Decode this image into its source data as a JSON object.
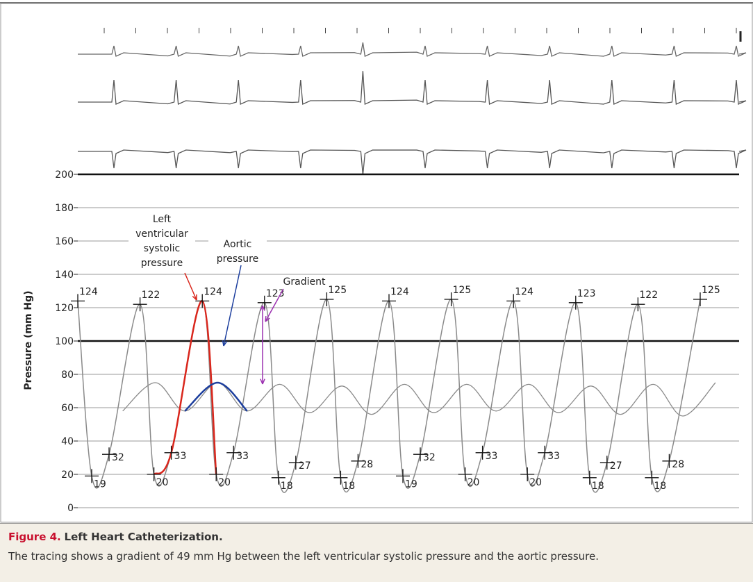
{
  "chart_data": {
    "type": "line",
    "ylabel": "Pressure (mm Hg)",
    "ylim": [
      0,
      200
    ],
    "yticks": [
      0,
      20,
      40,
      60,
      80,
      100,
      120,
      140,
      160,
      180,
      200
    ],
    "grid": true,
    "bold_gridlines": [
      100,
      200
    ],
    "lv_peaks": [
      124,
      122,
      124,
      123,
      125,
      124,
      125,
      124,
      123,
      122,
      125
    ],
    "lv_minima": [
      19,
      20,
      20,
      18,
      18,
      19,
      20,
      20,
      18,
      18
    ],
    "lv_end_diastolic": [
      32,
      33,
      33,
      27,
      28,
      32,
      33,
      33,
      27,
      28
    ],
    "aortic_systolic": [
      75,
      75,
      74,
      73,
      74,
      74,
      74,
      73,
      74,
      75
    ],
    "aortic_diastolic": [
      58,
      58,
      58,
      57,
      56,
      57,
      58,
      57,
      56,
      55
    ],
    "lv_color": "#8a8a8a",
    "highlight_beat": 2,
    "lv_highlight_color": "#d9261c",
    "aortic_highlight_color": "#1d3f9e",
    "gradient_color": "#9b30b0",
    "annotations": {
      "lv": [
        "Left",
        "ventricular",
        "systolic",
        "pressure"
      ],
      "aortic": [
        "Aortic",
        "pressure"
      ],
      "gradient": "Gradient"
    }
  },
  "caption": {
    "label": "Figure 4.",
    "title": "Left Heart Catheterization.",
    "text": "The tracing shows a gradient of 49 mm Hg between the left ventricular systolic pressure and the aortic pressure."
  }
}
